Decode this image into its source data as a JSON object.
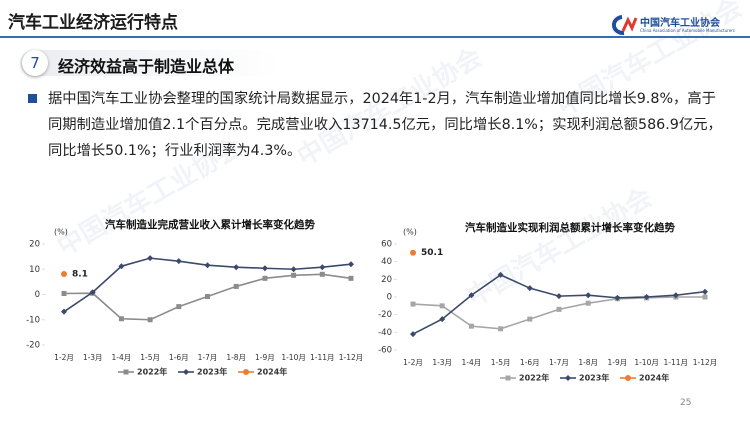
{
  "header": {
    "title": "汽车工业经济运行特点",
    "logo_name": "中国汽车工业协会",
    "logo_subtitle": "China Association of Automobile Manufacturers"
  },
  "section": {
    "number": "7",
    "title": "经济效益高于制造业总体"
  },
  "paragraph": "据中国汽车工业协会整理的国家统计局数据显示，2024年1-2月，汽车制造业增加值同比增长9.8%，高于同期制造业增加值2.1个百分点。完成营业收入13714.5亿元，同比增长8.1%；实现利润总额586.9亿元，同比增长50.1%；行业利润率为4.3%。",
  "watermark": "中国汽车工业协会",
  "page_number": "25",
  "chart_data": [
    {
      "type": "line",
      "title": "汽车制造业完成营业收入累计增长率变化趋势",
      "y_label": "(%)",
      "categories": [
        "1-2月",
        "1-3月",
        "1-4月",
        "1-5月",
        "1-6月",
        "1-7月",
        "1-8月",
        "1-9月",
        "1-10月",
        "1-11月",
        "1-12月"
      ],
      "ylim": [
        -20,
        20
      ],
      "yticks": [
        -20,
        -10,
        0,
        10,
        20
      ],
      "grid": false,
      "series": [
        {
          "name": "2022年",
          "color": "#8c8c8c",
          "marker": "square",
          "values": [
            0.4,
            0.5,
            -9.6,
            -10,
            -4.8,
            -0.8,
            3.2,
            6.4,
            7.6,
            8,
            6.4
          ]
        },
        {
          "name": "2023年",
          "color": "#3b4a6b",
          "marker": "diamond",
          "values": [
            -6.8,
            0.9,
            11.2,
            14.4,
            13.2,
            11.6,
            10.8,
            10.4,
            10,
            10.8,
            12
          ]
        },
        {
          "name": "2024年",
          "color": "#ed7d31",
          "marker": "circle",
          "values": [
            8.1,
            null,
            null,
            null,
            null,
            null,
            null,
            null,
            null,
            null,
            null
          ]
        }
      ]
    },
    {
      "type": "line",
      "title": "汽车制造业实现利润总额累计增长率变化趋势",
      "y_label": "(%)",
      "categories": [
        "1-2月",
        "1-3月",
        "1-4月",
        "1-5月",
        "1-6月",
        "1-7月",
        "1-8月",
        "1-9月",
        "1-10月",
        "1-11月",
        "1-12月"
      ],
      "ylim": [
        -60,
        60
      ],
      "yticks": [
        -60,
        -40,
        -20,
        0,
        20,
        40,
        60
      ],
      "grid": false,
      "series": [
        {
          "name": "2022年",
          "color": "#a6a6a6",
          "marker": "square",
          "values": [
            -8,
            -10,
            -33,
            -36,
            -25,
            -14,
            -7,
            -2,
            -1,
            0,
            0
          ]
        },
        {
          "name": "2023年",
          "color": "#3b4a6b",
          "marker": "diamond",
          "values": [
            -42,
            -25,
            2,
            25,
            10,
            1,
            2,
            -1,
            0,
            2,
            6
          ]
        },
        {
          "name": "2024年",
          "color": "#ed7d31",
          "marker": "circle",
          "values": [
            50.1,
            null,
            null,
            null,
            null,
            null,
            null,
            null,
            null,
            null,
            null
          ]
        }
      ]
    }
  ]
}
